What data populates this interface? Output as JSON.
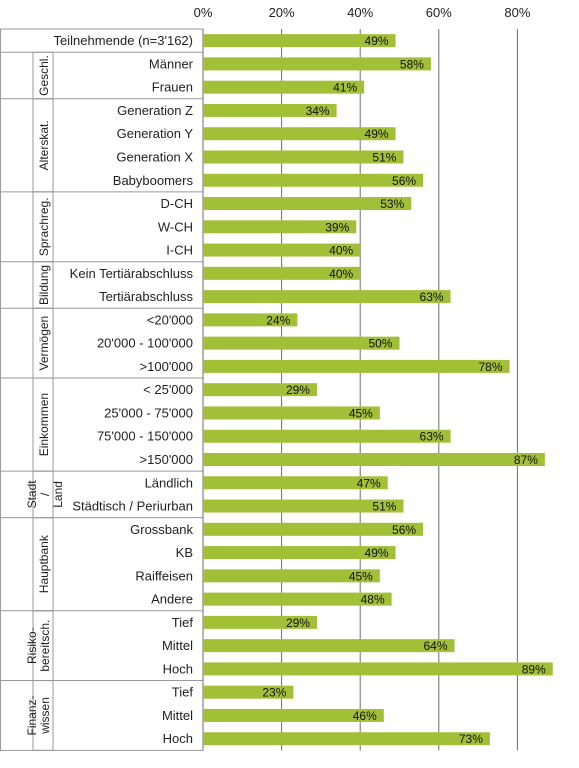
{
  "chart_data": {
    "type": "bar",
    "orientation": "horizontal",
    "x_ticks": [
      "0%",
      "20%",
      "40%",
      "60%",
      "80%"
    ],
    "xlim": [
      0,
      90
    ],
    "grid": true,
    "bar_color": "#a2c037",
    "groups": [
      {
        "label": "",
        "items": [
          {
            "category": "Teilnehmende (n=3'162)",
            "value": 49,
            "label": "49%"
          }
        ]
      },
      {
        "label": "Geschl.",
        "items": [
          {
            "category": "Männer",
            "value": 58,
            "label": "58%"
          },
          {
            "category": "Frauen",
            "value": 41,
            "label": "41%"
          }
        ]
      },
      {
        "label": "Alterskat.",
        "items": [
          {
            "category": "Generation Z",
            "value": 34,
            "label": "34%"
          },
          {
            "category": "Generation Y",
            "value": 49,
            "label": "49%"
          },
          {
            "category": "Generation X",
            "value": 51,
            "label": "51%"
          },
          {
            "category": "Babyboomers",
            "value": 56,
            "label": "56%"
          }
        ]
      },
      {
        "label": "Sprachreg.",
        "items": [
          {
            "category": "D-CH",
            "value": 53,
            "label": "53%"
          },
          {
            "category": "W-CH",
            "value": 39,
            "label": "39%"
          },
          {
            "category": "I-CH",
            "value": 40,
            "label": "40%"
          }
        ]
      },
      {
        "label": "Bildung",
        "items": [
          {
            "category": "Kein Tertiärabschluss",
            "value": 40,
            "label": "40%"
          },
          {
            "category": "Tertiärabschluss",
            "value": 63,
            "label": "63%"
          }
        ]
      },
      {
        "label": "Vermögen",
        "items": [
          {
            "category": "<20'000",
            "value": 24,
            "label": "24%"
          },
          {
            "category": "20'000 - 100'000",
            "value": 50,
            "label": "50%"
          },
          {
            "category": ">100'000",
            "value": 78,
            "label": "78%"
          }
        ]
      },
      {
        "label": "Einkommen",
        "items": [
          {
            "category": "< 25'000",
            "value": 29,
            "label": "29%"
          },
          {
            "category": "25'000 - 75'000",
            "value": 45,
            "label": "45%"
          },
          {
            "category": "75'000 - 150'000",
            "value": 63,
            "label": "63%"
          },
          {
            "category": ">150'000",
            "value": 87,
            "label": "87%"
          }
        ]
      },
      {
        "label": "Stadt / Land",
        "items": [
          {
            "category": "Ländlich",
            "value": 47,
            "label": "47%"
          },
          {
            "category": "Städtisch / Periurban",
            "value": 51,
            "label": "51%"
          }
        ]
      },
      {
        "label": "Hauptbank",
        "items": [
          {
            "category": "Grossbank",
            "value": 56,
            "label": "56%"
          },
          {
            "category": "KB",
            "value": 49,
            "label": "49%"
          },
          {
            "category": "Raiffeisen",
            "value": 45,
            "label": "45%"
          },
          {
            "category": "Andere",
            "value": 48,
            "label": "48%"
          }
        ]
      },
      {
        "label": "Risiko- bereitsch.",
        "items": [
          {
            "category": "Tief",
            "value": 29,
            "label": "29%"
          },
          {
            "category": "Mittel",
            "value": 64,
            "label": "64%"
          },
          {
            "category": "Hoch",
            "value": 89,
            "label": "89%"
          }
        ]
      },
      {
        "label": "Finanz- wissen",
        "items": [
          {
            "category": "Tief",
            "value": 23,
            "label": "23%"
          },
          {
            "category": "Mittel",
            "value": 46,
            "label": "46%"
          },
          {
            "category": "Hoch",
            "value": 73,
            "label": "73%"
          }
        ]
      }
    ]
  }
}
